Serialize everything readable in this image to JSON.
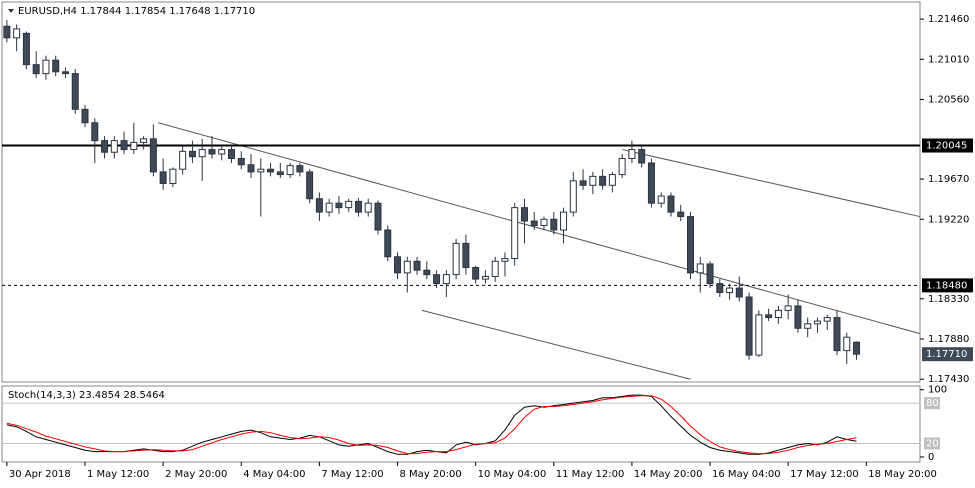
{
  "chart_data": [
    {
      "type": "candlestick",
      "title": "EURUSD,H4  1.17844 1.17854 1.17648 1.17710",
      "up_color": "#ffffff",
      "down_color": "#3f4a58",
      "edge_color": "#2b3440",
      "ylim": [
        1.1741,
        1.2164
      ],
      "yticks": [
        {
          "value": 1.2146,
          "label": "1.21460"
        },
        {
          "value": 1.2101,
          "label": "1.21010"
        },
        {
          "value": 1.2056,
          "label": "1.20560"
        },
        {
          "value": 1.1967,
          "label": "1.19670"
        },
        {
          "value": 1.1922,
          "label": "1.19220"
        },
        {
          "value": 1.1833,
          "label": "1.18330"
        },
        {
          "value": 1.1788,
          "label": "1.17880"
        },
        {
          "value": 1.1743,
          "label": "1.17430"
        }
      ],
      "xlim": [
        -0.5,
        93.5
      ],
      "xticks": [
        {
          "value": 0,
          "label": "30 Apr 2018"
        },
        {
          "value": 8,
          "label": "1 May 12:00"
        },
        {
          "value": 16,
          "label": "2 May 20:00"
        },
        {
          "value": 24,
          "label": "4 May 04:00"
        },
        {
          "value": 32,
          "label": "7 May 12:00"
        },
        {
          "value": 40,
          "label": "8 May 20:00"
        },
        {
          "value": 48,
          "label": "10 May 04:00"
        },
        {
          "value": 56,
          "label": "11 May 12:00"
        },
        {
          "value": 64,
          "label": "14 May 20:00"
        },
        {
          "value": 72,
          "label": "16 May 04:00"
        },
        {
          "value": 80,
          "label": "17 May 12:00"
        },
        {
          "value": 88,
          "label": "18 May 20:00"
        }
      ],
      "hlines": [
        {
          "value": 1.20045,
          "label": "1.20045",
          "style": "solid"
        },
        {
          "value": 1.1848,
          "label": "1.18480",
          "style": "dashed"
        }
      ],
      "current_price": {
        "value": 1.1771,
        "label": "1.17710"
      },
      "trendlines": [
        {
          "x": [
            15.5,
            93.5
          ],
          "y": [
            1.203,
            1.1794
          ]
        },
        {
          "x": [
            42.5,
            70
          ],
          "y": [
            1.182,
            1.1743
          ]
        },
        {
          "x": [
            63,
            93.5
          ],
          "y": [
            1.2,
            1.1925
          ]
        }
      ],
      "ohlc": [
        [
          1.2138,
          1.2145,
          1.212,
          1.2125
        ],
        [
          1.2125,
          1.214,
          1.211,
          1.2135
        ],
        [
          1.213,
          1.2132,
          1.209,
          1.2095
        ],
        [
          1.2095,
          1.211,
          1.208,
          1.2085
        ],
        [
          1.2085,
          1.2105,
          1.2078,
          1.21
        ],
        [
          1.21,
          1.2105,
          1.2082,
          1.2087
        ],
        [
          1.2087,
          1.2092,
          1.208,
          1.2085
        ],
        [
          1.2085,
          1.209,
          1.204,
          1.2045
        ],
        [
          1.2045,
          1.205,
          1.2025,
          1.203
        ],
        [
          1.203,
          1.2035,
          1.1985,
          1.201
        ],
        [
          1.201,
          1.2015,
          1.199,
          1.1997
        ],
        [
          1.1997,
          1.2015,
          1.199,
          1.201
        ],
        [
          1.201,
          1.202,
          1.1995,
          1.2
        ],
        [
          1.2,
          1.203,
          1.1995,
          1.2008
        ],
        [
          1.2008,
          1.2015,
          1.2,
          1.2012
        ],
        [
          1.2012,
          1.2028,
          1.197,
          1.1975
        ],
        [
          1.1975,
          1.199,
          1.1955,
          1.1962
        ],
        [
          1.1962,
          1.198,
          1.1958,
          1.1978
        ],
        [
          1.1978,
          1.2005,
          1.1972,
          1.1998
        ],
        [
          1.1998,
          1.201,
          1.1985,
          1.1992
        ],
        [
          1.1992,
          1.2012,
          1.1965,
          1.2
        ],
        [
          1.2,
          1.2015,
          1.199,
          1.1995
        ],
        [
          1.1995,
          1.2005,
          1.1988,
          1.2
        ],
        [
          1.2,
          1.2005,
          1.1985,
          1.199
        ],
        [
          1.199,
          1.1998,
          1.1978,
          1.1983
        ],
        [
          1.1983,
          1.1995,
          1.1968,
          1.1975
        ],
        [
          1.1975,
          1.199,
          1.1925,
          1.1978
        ],
        [
          1.1978,
          1.1985,
          1.197,
          1.1975
        ],
        [
          1.1975,
          1.1985,
          1.1968,
          1.1972
        ],
        [
          1.1972,
          1.1985,
          1.1968,
          1.1982
        ],
        [
          1.1982,
          1.1985,
          1.197,
          1.1975
        ],
        [
          1.1975,
          1.1978,
          1.194,
          1.1945
        ],
        [
          1.1945,
          1.1952,
          1.192,
          1.193
        ],
        [
          1.193,
          1.1945,
          1.1925,
          1.194
        ],
        [
          1.194,
          1.1948,
          1.1928,
          1.1935
        ],
        [
          1.1935,
          1.1945,
          1.193,
          1.1942
        ],
        [
          1.1942,
          1.1946,
          1.1925,
          1.193
        ],
        [
          1.193,
          1.1945,
          1.1925,
          1.194
        ],
        [
          1.194,
          1.1943,
          1.1905,
          1.191
        ],
        [
          1.191,
          1.1915,
          1.1875,
          1.188
        ],
        [
          1.188,
          1.1885,
          1.1855,
          1.1862
        ],
        [
          1.1862,
          1.188,
          1.184,
          1.1875
        ],
        [
          1.1875,
          1.188,
          1.186,
          1.1865
        ],
        [
          1.1865,
          1.1875,
          1.1855,
          1.186
        ],
        [
          1.186,
          1.1865,
          1.1845,
          1.185
        ],
        [
          1.185,
          1.1865,
          1.1835,
          1.186
        ],
        [
          1.186,
          1.19,
          1.1855,
          1.1895
        ],
        [
          1.1895,
          1.1905,
          1.186,
          1.1868
        ],
        [
          1.1868,
          1.187,
          1.185,
          1.1855
        ],
        [
          1.1855,
          1.1865,
          1.185,
          1.1858
        ],
        [
          1.1858,
          1.188,
          1.1852,
          1.1875
        ],
        [
          1.1875,
          1.1885,
          1.1858,
          1.1878
        ],
        [
          1.1878,
          1.194,
          1.187,
          1.1935
        ],
        [
          1.1935,
          1.1945,
          1.1895,
          1.192
        ],
        [
          1.192,
          1.193,
          1.191,
          1.1915
        ],
        [
          1.1915,
          1.1925,
          1.191,
          1.1922
        ],
        [
          1.1922,
          1.193,
          1.1905,
          1.191
        ],
        [
          1.191,
          1.1935,
          1.1895,
          1.193
        ],
        [
          1.193,
          1.1975,
          1.1925,
          1.1965
        ],
        [
          1.1965,
          1.1978,
          1.1955,
          1.196
        ],
        [
          1.196,
          1.1975,
          1.195,
          1.197
        ],
        [
          1.197,
          1.1978,
          1.1955,
          1.196
        ],
        [
          1.196,
          1.1975,
          1.1952,
          1.1972
        ],
        [
          1.1972,
          1.1995,
          1.1968,
          1.199
        ],
        [
          1.199,
          1.201,
          1.1985,
          1.2
        ],
        [
          1.2,
          1.2005,
          1.198,
          1.1985
        ],
        [
          1.1985,
          1.199,
          1.1935,
          1.194
        ],
        [
          1.194,
          1.1952,
          1.1935,
          1.1948
        ],
        [
          1.1948,
          1.1952,
          1.1925,
          1.193
        ],
        [
          1.193,
          1.1938,
          1.192,
          1.1925
        ],
        [
          1.1925,
          1.193,
          1.1855,
          1.1862
        ],
        [
          1.1862,
          1.188,
          1.184,
          1.1872
        ],
        [
          1.1872,
          1.1875,
          1.1845,
          1.185
        ],
        [
          1.185,
          1.1855,
          1.1835,
          1.184
        ],
        [
          1.184,
          1.185,
          1.1832,
          1.1845
        ],
        [
          1.1845,
          1.1858,
          1.183,
          1.1835
        ],
        [
          1.1835,
          1.184,
          1.1765,
          1.177
        ],
        [
          1.177,
          1.182,
          1.1768,
          1.1815
        ],
        [
          1.1815,
          1.1822,
          1.1808,
          1.1812
        ],
        [
          1.1812,
          1.1825,
          1.1805,
          1.182
        ],
        [
          1.182,
          1.1838,
          1.181,
          1.1825
        ],
        [
          1.1825,
          1.1832,
          1.1795,
          1.18
        ],
        [
          1.18,
          1.1812,
          1.179,
          1.1805
        ],
        [
          1.1805,
          1.1812,
          1.1795,
          1.1808
        ],
        [
          1.1808,
          1.1815,
          1.1798,
          1.1812
        ],
        [
          1.1812,
          1.182,
          1.177,
          1.1775
        ],
        [
          1.1775,
          1.1795,
          1.176,
          1.179
        ],
        [
          1.17844,
          1.17854,
          1.17648,
          1.1771
        ]
      ]
    },
    {
      "type": "line",
      "title": "Stoch(14,3,3) 23.4854 28.5464",
      "ylim": [
        -6,
        104
      ],
      "yticks": [
        100,
        0
      ],
      "levels": [
        80,
        20
      ],
      "series": [
        {
          "color": "#000000",
          "values": [
            48,
            45,
            38,
            30,
            26,
            22,
            18,
            14,
            10,
            8,
            8,
            8,
            8,
            10,
            12,
            10,
            8,
            8,
            10,
            16,
            22,
            26,
            30,
            34,
            38,
            40,
            36,
            30,
            28,
            26,
            28,
            32,
            30,
            24,
            18,
            16,
            18,
            20,
            14,
            8,
            4,
            4,
            8,
            10,
            8,
            6,
            18,
            22,
            18,
            20,
            24,
            40,
            62,
            74,
            76,
            74,
            76,
            78,
            80,
            82,
            84,
            88,
            88,
            90,
            92,
            92,
            90,
            76,
            60,
            46,
            32,
            22,
            14,
            10,
            8,
            6,
            4,
            4,
            6,
            10,
            14,
            18,
            20,
            18,
            22,
            30,
            26,
            23.4854
          ]
        },
        {
          "color": "#ff0000",
          "values": [
            50,
            47,
            42,
            37,
            31,
            27,
            23,
            19,
            15,
            12,
            9,
            8,
            8,
            9,
            10,
            11,
            10,
            9,
            9,
            11,
            16,
            21,
            26,
            30,
            34,
            37,
            38,
            36,
            32,
            29,
            27,
            28,
            30,
            29,
            25,
            20,
            17,
            18,
            17,
            14,
            9,
            5,
            5,
            7,
            8,
            8,
            11,
            15,
            19,
            20,
            21,
            28,
            42,
            59,
            71,
            75,
            75,
            76,
            78,
            80,
            82,
            85,
            87,
            89,
            90,
            91,
            91,
            86,
            75,
            61,
            46,
            33,
            23,
            15,
            11,
            8,
            6,
            5,
            5,
            7,
            10,
            14,
            17,
            19,
            20,
            23,
            26,
            28.5464
          ]
        }
      ]
    }
  ]
}
